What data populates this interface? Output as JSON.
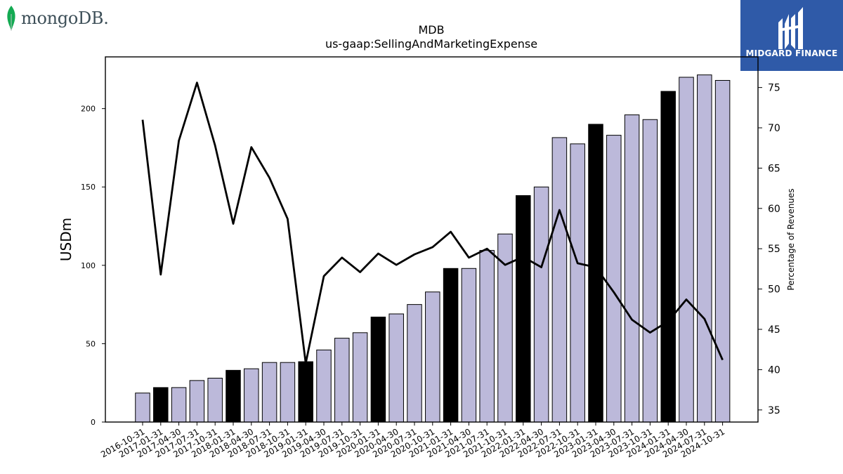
{
  "logos": {
    "left_text": "mongoDB.",
    "right_text": "MIDGARD FINANCE",
    "leaf_color": "#13aa52"
  },
  "chart_data": {
    "type": "bar",
    "title": "MDB",
    "subtitle": "us-gaap:SellingAndMarketingExpense",
    "ylabel": "USDm",
    "y2label": "Percentage of Revenues",
    "ylim": [
      0,
      233
    ],
    "y2lim": [
      33.5,
      78.8
    ],
    "yticks": [
      0,
      50,
      100,
      150,
      200
    ],
    "y2ticks": [
      35,
      40,
      45,
      50,
      55,
      60,
      65,
      70,
      75
    ],
    "categories": [
      "2016-10-31",
      "2017-01-31",
      "2017-04-30",
      "2017-07-31",
      "2017-10-31",
      "2018-01-31",
      "2018-04-30",
      "2018-07-31",
      "2018-10-31",
      "2019-01-31",
      "2019-04-30",
      "2019-07-31",
      "2019-10-31",
      "2020-01-31",
      "2020-04-30",
      "2020-07-31",
      "2020-10-31",
      "2021-01-31",
      "2021-04-30",
      "2021-07-31",
      "2021-10-31",
      "2022-01-31",
      "2022-04-30",
      "2022-07-31",
      "2022-10-31",
      "2023-01-31",
      "2023-04-30",
      "2023-07-31",
      "2023-10-31",
      "2024-01-31",
      "2024-04-30",
      "2024-07-31",
      "2024-10-31"
    ],
    "series": [
      {
        "kind": "bar",
        "values": [
          18.5,
          22,
          22,
          26.5,
          28,
          33,
          34,
          38,
          38,
          38.5,
          46,
          53.5,
          57,
          67,
          69,
          75,
          83,
          98,
          98,
          109.5,
          120,
          144.5,
          150,
          181.5,
          177.5,
          190,
          183,
          196,
          193,
          211,
          220,
          221.5,
          218
        ],
        "highlight": [
          false,
          true,
          false,
          false,
          false,
          true,
          false,
          false,
          false,
          true,
          false,
          false,
          false,
          true,
          false,
          false,
          false,
          true,
          false,
          false,
          false,
          true,
          false,
          false,
          false,
          true,
          false,
          false,
          false,
          true,
          false,
          false,
          false
        ],
        "color": "#bcb9da",
        "highlight_color": "#000000"
      },
      {
        "kind": "line",
        "axis": "right",
        "values": [
          71,
          51.8,
          68.4,
          75.6,
          67.8,
          58.1,
          67.6,
          63.8,
          58.7,
          40.8,
          51.6,
          53.9,
          52.1,
          54.4,
          53,
          54.3,
          55.2,
          57.1,
          53.9,
          55,
          53,
          54,
          52.7,
          59.8,
          53.2,
          52.7,
          49.6,
          46.2,
          44.6,
          46,
          48.7,
          46.3,
          41.2
        ],
        "color": "#000000"
      }
    ]
  }
}
